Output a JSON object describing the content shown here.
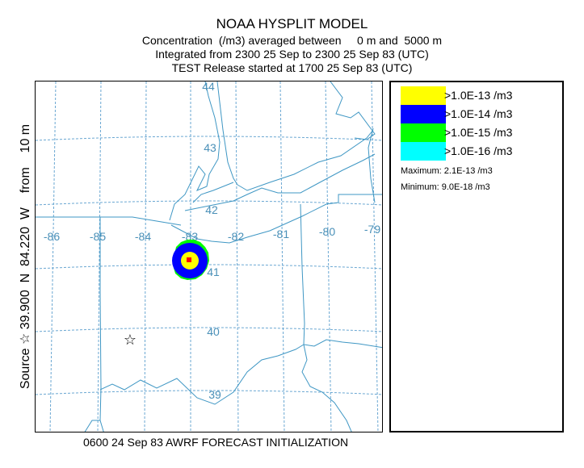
{
  "header": {
    "title": "NOAA HYSPLIT MODEL",
    "line2": "Concentration  (/m3) averaged between     0 m and  5000 m",
    "line3": "Integrated from 2300 25 Sep to 2300 25 Sep 83 (UTC)",
    "line4": "TEST Release started at 1700 25 Sep 83 (UTC)"
  },
  "side_label": "Source ☆ 39.900  N  84.220  W    from    10 m",
  "bottom_label": "0600 24 Sep 83 AWRF FORECAST INITIALIZATION",
  "map": {
    "lon_labels": [
      "-86",
      "-85",
      "-84",
      "-83",
      "-82",
      "-81",
      "-80",
      "-79"
    ],
    "lat_labels": [
      "44",
      "43",
      "42",
      "41",
      "40",
      "39"
    ],
    "source": {
      "lat": 39.9,
      "lon": -84.22,
      "symbol": "☆"
    },
    "colors": {
      "grid": "#6aa7d2",
      "boundary": "#3f97c4",
      "label": "#4a90b8"
    }
  },
  "legend": {
    "items": [
      {
        "color": "#ffff00",
        "label": ">1.0E-13 /m3"
      },
      {
        "color": "#0000ff",
        "label": ">1.0E-14 /m3"
      },
      {
        "color": "#00ff00",
        "label": ">1.0E-15 /m3"
      },
      {
        "color": "#00ffff",
        "label": ">1.0E-16 /m3"
      }
    ],
    "maximum": "Maximum: 2.1E-13 /m3",
    "minimum": "Minimum: 9.0E-18 /m3"
  },
  "plume": {
    "peak_color": "#ff0000"
  }
}
